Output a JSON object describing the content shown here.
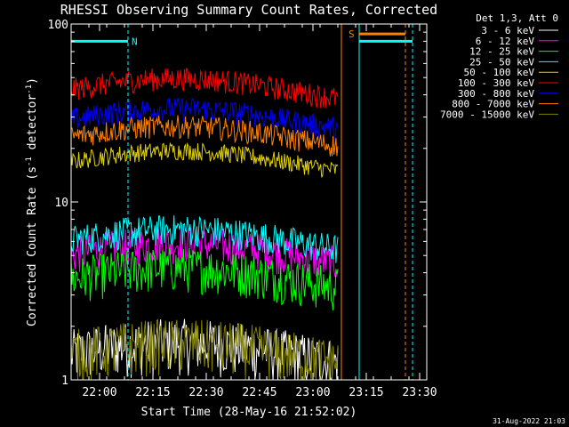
{
  "chart_data": {
    "type": "line",
    "title": "RHESSI Observing Summary Count Rates, Corrected",
    "xlabel": "Start Time (28-May-16 21:52:02)",
    "ylabel": "Corrected Count Rate (s",
    "ylabel_sup1": "-1",
    "ylabel_mid": " detector",
    "ylabel_sup2": "-1",
    "ylabel_end": ")",
    "y_scale": "log",
    "ylim": [
      1,
      100
    ],
    "xlim": [
      "21:52",
      "23:32"
    ],
    "x_ticks": [
      "22:00",
      "22:15",
      "22:30",
      "22:45",
      "23:00",
      "23:15",
      "23:30"
    ],
    "y_ticks": [
      "1",
      "10",
      "100"
    ],
    "grid": false,
    "legend_position": "top-right",
    "legend_title": "Det 1,3, Att 0",
    "series": [
      {
        "name": "3 - 6 keV",
        "color": "#ffffff",
        "level_range": [
          1,
          2
        ]
      },
      {
        "name": "6 - 12 keV",
        "color": "#ff00ff",
        "level_range": [
          4,
          6.5
        ]
      },
      {
        "name": "12 - 25 keV",
        "color": "#00ff00",
        "level_range": [
          2.8,
          5
        ]
      },
      {
        "name": "25 - 50 keV",
        "color": "#00ffff",
        "level_range": [
          5,
          7.5
        ]
      },
      {
        "name": "50 - 100 keV",
        "color": "#e0d000",
        "level_range": [
          15,
          19
        ]
      },
      {
        "name": "100 - 300 keV",
        "color": "#ff0000",
        "level_range": [
          37,
          50
        ]
      },
      {
        "name": "300 - 800 keV",
        "color": "#0000ff",
        "level_range": [
          25,
          34
        ]
      },
      {
        "name": "800 - 7000 keV",
        "color": "#ff8000",
        "level_range": [
          20,
          27
        ]
      },
      {
        "name": "7000 - 15000 keV",
        "color": "#808000",
        "level_range": [
          1,
          2
        ]
      }
    ],
    "data_end_time": "23:07",
    "markers": [
      {
        "label": "N",
        "color": "#00ffff",
        "start": "21:52",
        "end": "22:08",
        "level": 80
      },
      {
        "label": "S",
        "color": "#ff8000",
        "start": "23:13",
        "end": "23:26",
        "level": 88
      },
      {
        "label": "",
        "color": "#00ffff",
        "start": "23:13",
        "end": "23:28",
        "level": 80
      }
    ],
    "vertical_lines": [
      {
        "time": "22:08",
        "color": "#00ffff",
        "style": "dashed"
      },
      {
        "time": "23:08",
        "color": "#ff8000",
        "style": "solid"
      },
      {
        "time": "23:13",
        "color": "#00ffff",
        "style": "solid"
      },
      {
        "time": "23:26",
        "color": "#ff8000",
        "style": "dashed"
      },
      {
        "time": "23:28",
        "color": "#00ffff",
        "style": "dashed"
      }
    ]
  },
  "timestamp": "31-Aug-2022 21:03"
}
